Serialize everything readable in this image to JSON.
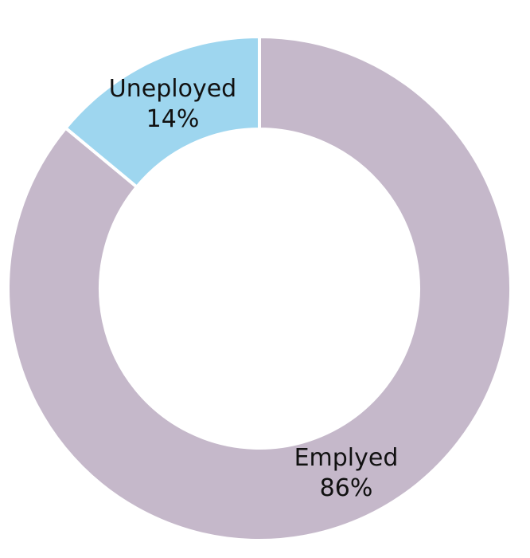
{
  "chart_data": {
    "type": "donut",
    "categories": [
      "Emplyed",
      "Uneployed"
    ],
    "values": [
      86,
      14
    ],
    "value_labels": [
      "86%",
      "14%"
    ],
    "colors": [
      "#c5b8ca",
      "#9ed6ef"
    ]
  }
}
